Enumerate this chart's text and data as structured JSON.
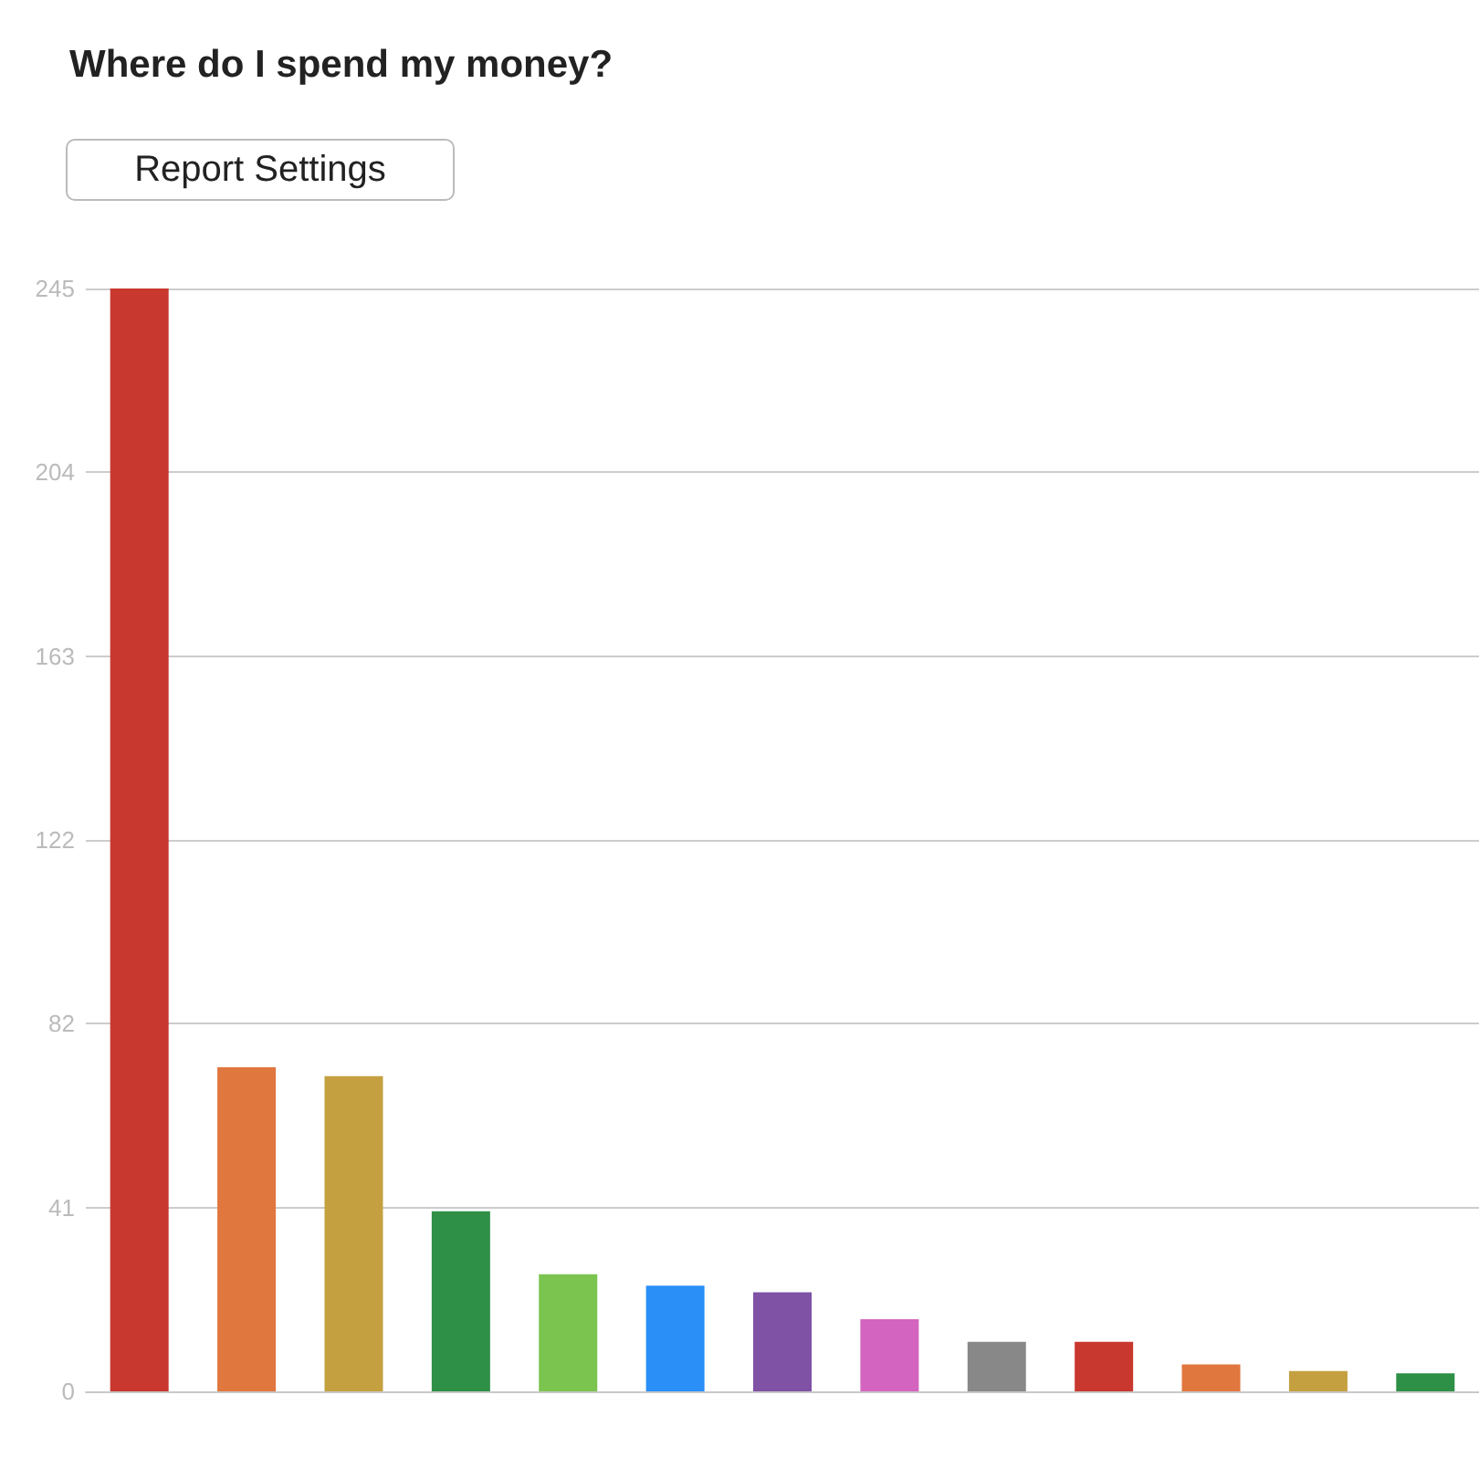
{
  "chart_data": {
    "type": "bar",
    "title": "Where do I spend my money?",
    "annotations": [
      "Report Settings"
    ],
    "categories": [
      null,
      null,
      null,
      null,
      null,
      null,
      null,
      null,
      null,
      null,
      null,
      null,
      null
    ],
    "values": [
      245,
      72,
      70,
      40,
      26,
      23.5,
      22,
      16,
      11,
      11,
      6,
      4.5,
      4
    ],
    "colors": [
      "#c9382f",
      "#e0773e",
      "#c4a040",
      "#2e8f47",
      "#7bc44f",
      "#2a8ff7",
      "#7f52a5",
      "#d364c0",
      "#888888",
      "#c9382f",
      "#e0773e",
      "#c4a040",
      "#2e8f47"
    ],
    "ylim": [
      0,
      245
    ],
    "yticks": [
      0,
      {
        "value": 40.83,
        "label": "41"
      },
      {
        "value": 81.67,
        "label": "82"
      },
      {
        "value": 122.5,
        "label": "122"
      },
      {
        "value": 163.33,
        "label": "163"
      },
      {
        "value": 204.17,
        "label": "204"
      },
      245
    ],
    "grid": "y"
  }
}
